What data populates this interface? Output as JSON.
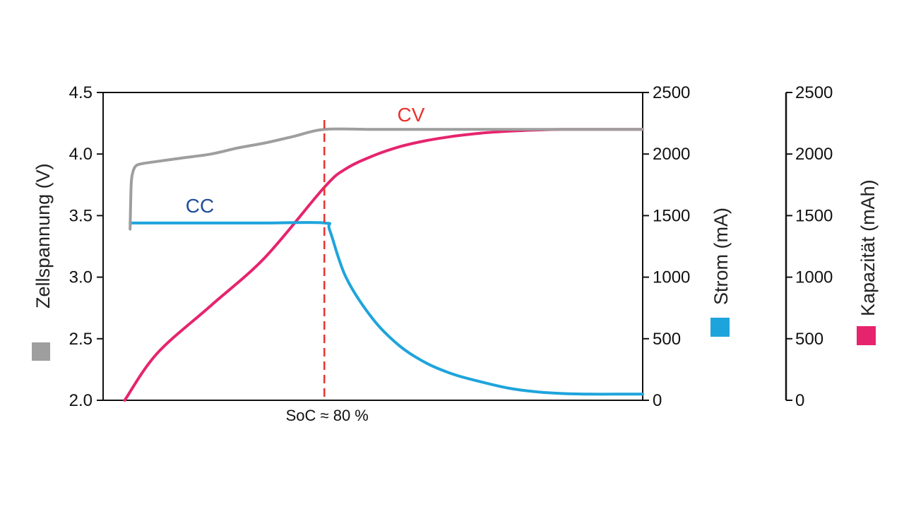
{
  "chart_data": {
    "type": "line",
    "title": "",
    "xlabel": "",
    "x_marker": {
      "label": "SoC ≈ 80 %",
      "x": 0.41
    },
    "x_range": [
      0,
      1
    ],
    "axes": {
      "voltage": {
        "label": "Zellspannung (V)",
        "range": [
          2.0,
          4.5
        ],
        "ticks": [
          2.0,
          2.5,
          3.0,
          3.5,
          4.0,
          4.5
        ],
        "tick_labels": [
          "2.0",
          "2.5",
          "3.0",
          "3.5",
          "4.0",
          "4.5"
        ]
      },
      "current": {
        "label": "Strom (mA)",
        "range": [
          0,
          2500
        ],
        "ticks": [
          0,
          500,
          1000,
          1500,
          2000,
          2500
        ],
        "tick_labels": [
          "0",
          "500",
          "1000",
          "1500",
          "2000",
          "2500"
        ]
      },
      "capacity": {
        "label": "Kapazität (mAh)",
        "range": [
          0,
          2500
        ],
        "ticks": [
          0,
          500,
          1000,
          1500,
          2000,
          2500
        ],
        "tick_labels": [
          "0",
          "500",
          "1000",
          "1500",
          "2000",
          "2500"
        ]
      }
    },
    "series": [
      {
        "name": "Zellspannung",
        "axis": "voltage",
        "color": "#9e9e9e",
        "x": [
          0.05,
          0.052,
          0.055,
          0.06,
          0.07,
          0.1,
          0.15,
          0.2,
          0.25,
          0.3,
          0.35,
          0.41,
          0.5,
          0.6,
          0.7,
          0.8,
          0.9,
          1.0
        ],
        "y": [
          3.39,
          3.75,
          3.85,
          3.9,
          3.92,
          3.94,
          3.97,
          4.0,
          4.05,
          4.09,
          4.14,
          4.2,
          4.2,
          4.2,
          4.2,
          4.2,
          4.2,
          4.2
        ]
      },
      {
        "name": "Strom",
        "axis": "current",
        "color": "#1ea4dc",
        "x": [
          0.05,
          0.1,
          0.2,
          0.3,
          0.41,
          0.42,
          0.45,
          0.5,
          0.55,
          0.6,
          0.65,
          0.7,
          0.75,
          0.8,
          0.85,
          0.9,
          0.95,
          1.0
        ],
        "y": [
          1440,
          1440,
          1440,
          1440,
          1440,
          1380,
          1000,
          660,
          440,
          300,
          210,
          150,
          100,
          70,
          55,
          50,
          50,
          50
        ]
      },
      {
        "name": "Kapazität",
        "axis": "capacity",
        "color": "#e6246e",
        "x": [
          0.04,
          0.1,
          0.2,
          0.3,
          0.41,
          0.45,
          0.5,
          0.55,
          0.6,
          0.65,
          0.7,
          0.75,
          0.8,
          0.85,
          0.9,
          0.95,
          1.0
        ],
        "y": [
          0,
          380,
          770,
          1160,
          1730,
          1880,
          1985,
          2060,
          2110,
          2145,
          2170,
          2185,
          2195,
          2200,
          2200,
          2200,
          2200
        ]
      }
    ],
    "annotations": [
      {
        "text": "CC",
        "color": "#1f4e99"
      },
      {
        "text": "CV",
        "color": "#e8332e"
      }
    ],
    "legend": "swatches beside each axis title",
    "grid": false
  }
}
